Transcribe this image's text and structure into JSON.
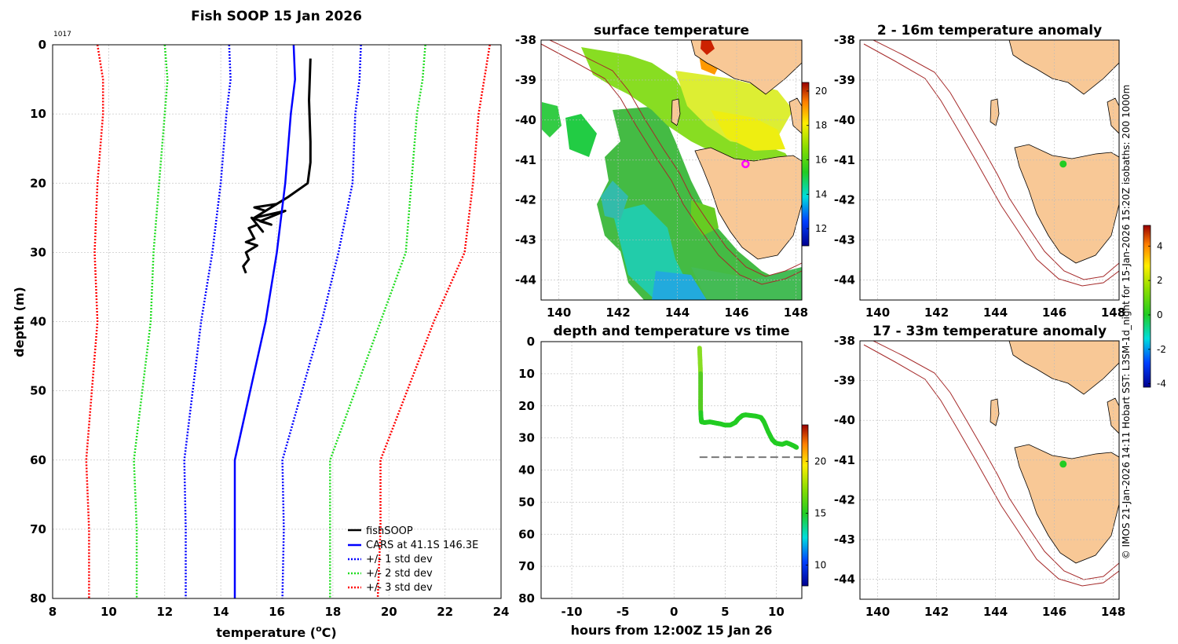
{
  "colors": {
    "land": "#f8c896",
    "isobath": "#a52a2a",
    "fishsoop": "#000000",
    "cars": "#0000ff",
    "std1": "#0000ff",
    "std2": "#22dd22",
    "std3": "#ff0000",
    "marker_surface": "#ff00ff",
    "marker_anom": "#22cc22",
    "grid": "#c8c8c8"
  },
  "chart_data": [
    {
      "id": "profile",
      "type": "line",
      "title": "Fish SOOP 15 Jan 2026",
      "corner_label": "1017",
      "xlabel": "temperature (",
      "xlabel_sup": "o",
      "xlabel_unit": "C)",
      "ylabel": "depth (m)",
      "xlim": [
        8,
        24
      ],
      "ylim": [
        0,
        80
      ],
      "y_reversed": true,
      "xticks": [
        8,
        10,
        12,
        14,
        16,
        18,
        20,
        22,
        24
      ],
      "yticks": [
        0,
        10,
        20,
        30,
        40,
        50,
        60,
        70,
        80
      ],
      "grid": true,
      "legend_position": "bottom-right",
      "series": [
        {
          "name": "fishSOOP",
          "style": "solid",
          "color_key": "fishsoop",
          "x": [
            17.2,
            17.15,
            17.2,
            17.2,
            17.1,
            16.4,
            16.0,
            15.6,
            15.2,
            16.0,
            15.2,
            16.3,
            15.4,
            15.8,
            15.1,
            15.5,
            15.3,
            15.0,
            15.2,
            14.9,
            15.3,
            14.9,
            15.0,
            14.8,
            14.9
          ],
          "y": [
            2,
            8,
            14,
            17,
            20,
            22,
            23,
            24,
            23.5,
            23,
            25,
            24,
            25.5,
            26,
            25,
            27,
            26,
            26.5,
            28,
            28.5,
            29,
            30,
            31,
            32,
            33
          ]
        },
        {
          "name": "CARS at 41.1S 146.3E",
          "style": "solid",
          "color_key": "cars",
          "x": [
            16.6,
            16.65,
            16.5,
            16.3,
            16.0,
            15.6,
            14.5,
            14.5
          ],
          "y": [
            0,
            5,
            10,
            20,
            30,
            40,
            60,
            80
          ]
        },
        {
          "name": "+/- 1 std dev",
          "style": "dotted",
          "color_key": "std1",
          "x": [
            14.3,
            14.35,
            14.2,
            14.0,
            13.7,
            13.3,
            12.7,
            12.75,
            12.75
          ],
          "x2": [
            19.0,
            18.95,
            18.8,
            18.7,
            18.2,
            17.6,
            16.2,
            16.25,
            16.2
          ],
          "y": [
            0,
            5,
            10,
            20,
            30,
            40,
            60,
            70,
            80
          ]
        },
        {
          "name": "+/- 2 std dev",
          "style": "dotted",
          "color_key": "std2",
          "x": [
            12.0,
            12.1,
            12.0,
            11.8,
            11.6,
            11.5,
            10.9,
            11.0,
            11.0
          ],
          "x2": [
            21.3,
            21.2,
            21.0,
            20.8,
            20.6,
            19.7,
            17.9,
            17.9,
            17.9
          ],
          "y": [
            0,
            5,
            10,
            20,
            30,
            40,
            60,
            70,
            80
          ]
        },
        {
          "name": "+/- 3 std dev",
          "style": "dotted",
          "color_key": "std3",
          "x": [
            9.6,
            9.8,
            9.8,
            9.6,
            9.5,
            9.6,
            9.2,
            9.3,
            9.3
          ],
          "x2": [
            23.6,
            23.4,
            23.2,
            23.0,
            22.7,
            21.6,
            19.7,
            19.7,
            19.6
          ],
          "y": [
            0,
            5,
            10,
            20,
            30,
            40,
            60,
            70,
            80
          ]
        }
      ]
    },
    {
      "id": "surface",
      "type": "heatmap",
      "title": "surface temperature",
      "xlim": [
        139.4,
        148.2
      ],
      "ylim": [
        -44.5,
        -38
      ],
      "xticks": [
        140,
        142,
        144,
        146,
        148
      ],
      "yticks": [
        -38,
        -39,
        -40,
        -41,
        -42,
        -43,
        -44
      ],
      "colorbar": {
        "min": 11,
        "max": 20.5,
        "ticks": [
          12,
          14,
          16,
          18,
          20
        ]
      },
      "marker": {
        "lon": 146.3,
        "lat": -41.1
      }
    },
    {
      "id": "timeseries",
      "type": "scatter",
      "title": "depth and temperature vs time",
      "xlabel": "hours from 12:00Z 15 Jan 26",
      "xlim": [
        -13,
        12.5
      ],
      "ylim": [
        0,
        80
      ],
      "y_reversed": true,
      "xticks": [
        -10,
        -5,
        0,
        5,
        10
      ],
      "yticks": [
        0,
        10,
        20,
        30,
        40,
        50,
        60,
        70,
        80
      ],
      "hours": [
        2.5,
        2.55,
        2.6,
        2.6,
        2.6,
        2.6,
        2.65,
        2.7,
        3.0,
        3.5,
        4.0,
        4.5,
        5.0,
        5.5,
        6.0,
        6.3,
        6.7,
        7.0,
        7.5,
        8.0,
        8.5,
        8.8,
        9.2,
        9.6,
        9.9,
        10.2,
        10.6,
        11.0,
        11.4,
        11.8,
        12.0
      ],
      "depths": [
        2,
        6,
        10,
        14,
        18,
        21,
        24,
        25,
        25.2,
        25.0,
        25.3,
        25.6,
        26.0,
        26.0,
        25.2,
        24.0,
        23.0,
        22.8,
        23.0,
        23.2,
        23.6,
        25.0,
        28.0,
        30.5,
        31.5,
        31.8,
        32.0,
        31.5,
        32.0,
        32.6,
        33.0
      ],
      "bottom_depth": 36,
      "colorbar": {
        "min": 8,
        "max": 23.5,
        "ticks": [
          10,
          15,
          20
        ]
      }
    },
    {
      "id": "anom1",
      "type": "heatmap",
      "title": "2 - 16m temperature anomaly",
      "xlim": [
        139.4,
        148.2
      ],
      "ylim": [
        -44.5,
        -38
      ],
      "xticks": [
        140,
        142,
        144,
        146,
        148
      ],
      "yticks": [
        -38,
        -39,
        -40,
        -41,
        -42,
        -43,
        -44
      ],
      "marker": {
        "lon": 146.3,
        "lat": -41.1
      }
    },
    {
      "id": "anom2",
      "type": "heatmap",
      "title": "17 - 33m temperature anomaly",
      "xlim": [
        139.4,
        148.2
      ],
      "ylim": [
        -44.5,
        -38
      ],
      "xticks": [
        140,
        142,
        144,
        146,
        148
      ],
      "yticks": [
        -38,
        -39,
        -40,
        -41,
        -42,
        -43,
        -44
      ],
      "marker": {
        "lon": 146.3,
        "lat": -41.1
      }
    },
    {
      "id": "anom_colorbar",
      "type": "heatmap",
      "colorbar": {
        "min": -4.2,
        "max": 5.2,
        "ticks": [
          -4,
          -2,
          0,
          2,
          4
        ]
      }
    }
  ],
  "side_note": "© IMOS 21-Jan-2026 14:11 Hobart SST: L3SM-1d_night for 15-Jan-2026 15:20Z isobaths: 200  1000m"
}
